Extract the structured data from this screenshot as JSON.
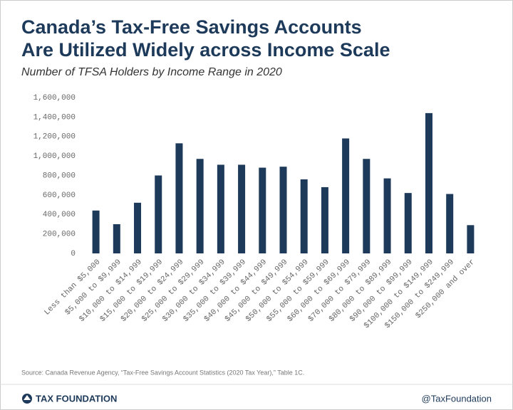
{
  "chart_data": {
    "type": "bar",
    "title": [
      "Canada’s Tax-Free Savings Accounts",
      "Are Utilized Widely across Income Scale"
    ],
    "subtitle": "Number of TFSA Holders by Income Range in 2020",
    "categories": [
      "Less than $5,000",
      "$5,000 to $9,999",
      "$10,000 to $14,999",
      "$15,000 to $19,999",
      "$20,000 to $24,999",
      "$25,000 to $29,999",
      "$30,000 to $34,999",
      "$35,000 to $39,999",
      "$40,000 to $44,999",
      "$45,000 to $49,999",
      "$50,000 to $54,999",
      "$55,000 to $59,999",
      "$60,000 to $69,999",
      "$70,000 to $79,999",
      "$80,000 to $89,999",
      "$90,000 to $99,999",
      "$100,000 to $149,999",
      "$150,000 to $249,999",
      "$250,000 and over"
    ],
    "values": [
      440000,
      300000,
      520000,
      800000,
      1130000,
      970000,
      910000,
      910000,
      880000,
      890000,
      760000,
      680000,
      1180000,
      970000,
      770000,
      620000,
      1440000,
      610000,
      290000
    ],
    "color": "#1e3a5a",
    "ylim": [
      0,
      1600000
    ],
    "yticks": [
      0,
      {
        "value": 200000,
        "label": "200,000"
      },
      {
        "value": 400000,
        "label": "400,000"
      },
      {
        "value": 600000,
        "label": "600,000"
      },
      {
        "value": 800000,
        "label": "800,000"
      },
      {
        "value": 1000000,
        "label": "1,000,000"
      },
      {
        "value": 1200000,
        "label": "1,200,000"
      },
      {
        "value": 1400000,
        "label": "1,400,000"
      },
      {
        "value": 1600000,
        "label": "1,600,000"
      }
    ],
    "grid": false,
    "source": "Source: Canada Revenue Agency, “Tax-Free Savings Account Statistics (2020 Tax Year),” Table 1C."
  },
  "footer": {
    "brand": "TAX FOUNDATION",
    "handle": "@TaxFoundation"
  }
}
